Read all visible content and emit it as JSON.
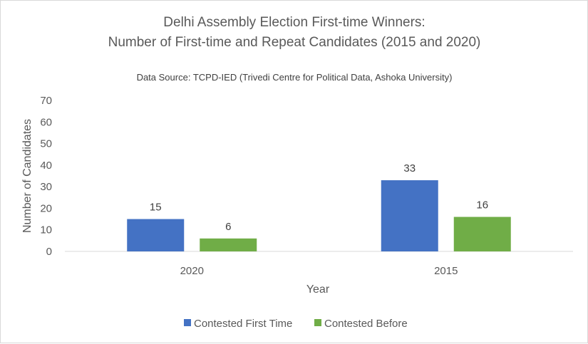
{
  "chart_data": {
    "type": "bar",
    "title_line1": "Delhi Assembly Election First-time Winners:",
    "title_line2": "Number of First-time and Repeat Candidates (2015 and 2020)",
    "subtitle": "Data Source: TCPD-IED (Trivedi Centre for Political Data,  Ashoka University)",
    "xlabel": "Year",
    "ylabel": "Number of Candidates",
    "categories": [
      "2020",
      "2015"
    ],
    "series": [
      {
        "name": "Contested First Time",
        "values": [
          15,
          33
        ],
        "color": "#4472c4"
      },
      {
        "name": "Contested Before",
        "values": [
          6,
          16
        ],
        "color": "#70ad47"
      }
    ],
    "ylim": [
      0,
      70
    ],
    "yticks": [
      "0",
      "10",
      "20",
      "30",
      "40",
      "50",
      "60",
      "70"
    ],
    "grid": false,
    "legend": "bottom"
  }
}
